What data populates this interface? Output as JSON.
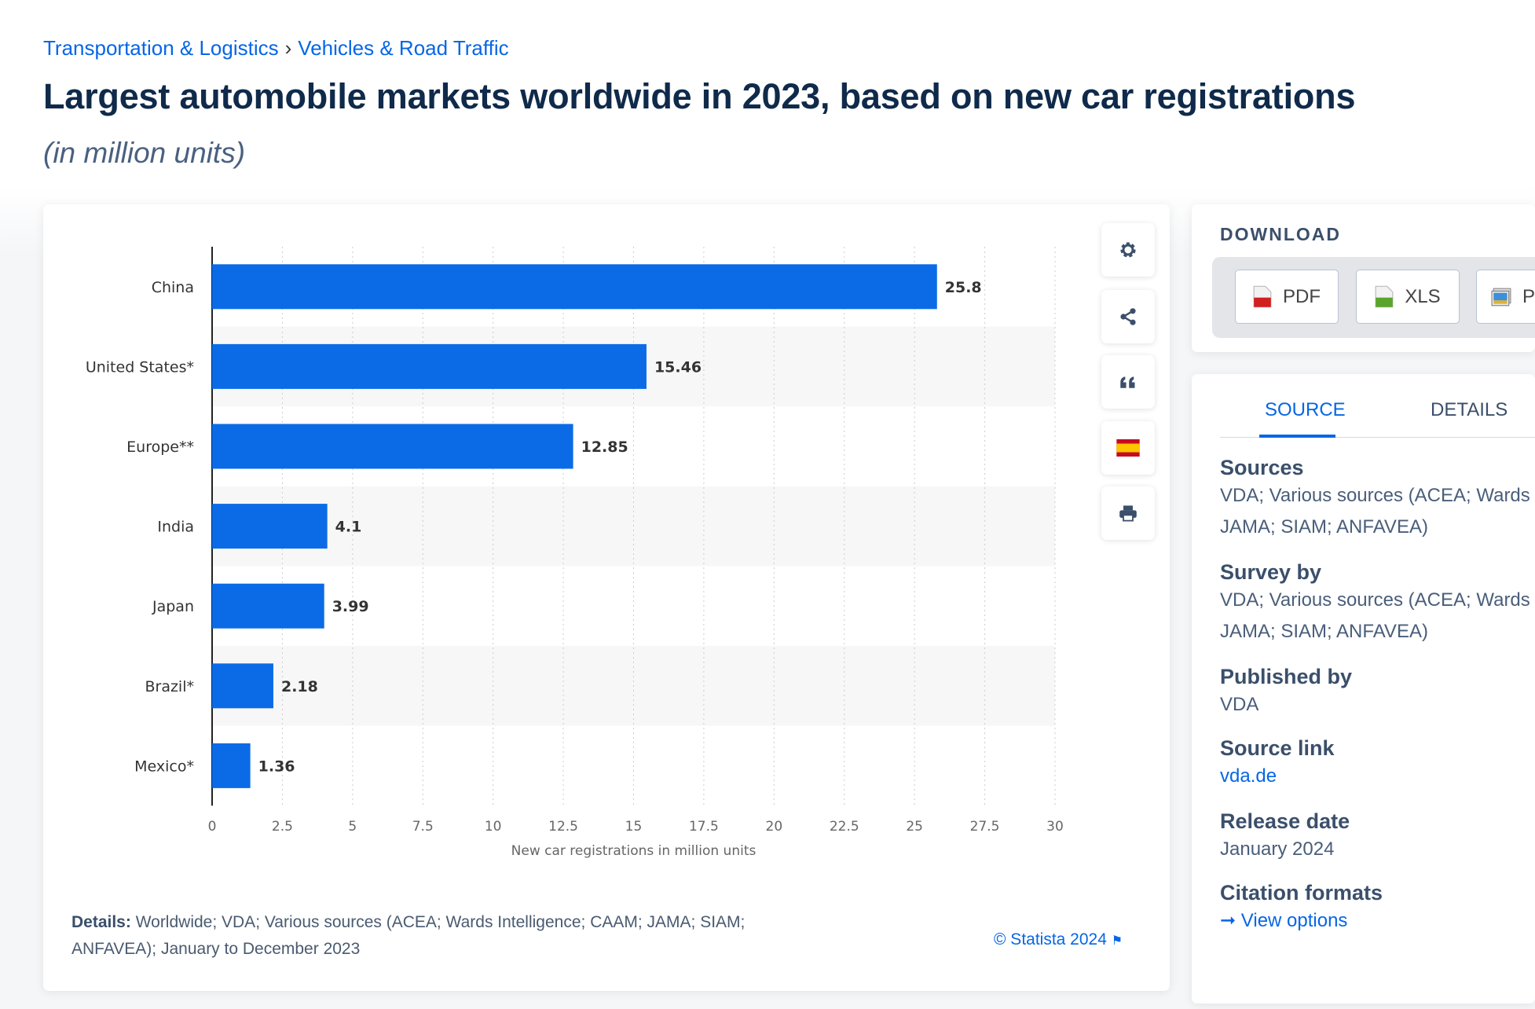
{
  "breadcrumb": [
    "Transportation & Logistics",
    "Vehicles & Road Traffic"
  ],
  "breadcrumb_sep": "›",
  "title": "Largest automobile markets worldwide in 2023, based on new car registrations",
  "subtitle": "(in million units)",
  "chart_data": {
    "type": "bar",
    "orientation": "horizontal",
    "categories": [
      "China",
      "United States*",
      "Europe**",
      "India",
      "Japan",
      "Brazil*",
      "Mexico*"
    ],
    "values": [
      25.8,
      15.46,
      12.85,
      4.1,
      3.99,
      2.18,
      1.36
    ],
    "value_labels": [
      "25.8",
      "15.46",
      "12.85",
      "4.1",
      "3.99",
      "2.18",
      "1.36"
    ],
    "xlabel": "New car registrations in million units",
    "xlim": [
      0,
      30
    ],
    "xticks": [
      "0",
      "2.5",
      "5",
      "7.5",
      "10",
      "12.5",
      "15",
      "17.5",
      "20",
      "22.5",
      "25",
      "27.5",
      "30"
    ],
    "grid": true,
    "bar_color": "#0b6be6"
  },
  "details_label": "Details:",
  "details_text": " Worldwide; VDA; Various sources (ACEA; Wards Intelligence; CAAM; JAMA; SIAM; ANFAVEA); January to December 2023",
  "credit": "© Statista 2024",
  "tools": [
    "settings-icon",
    "share-icon",
    "quote-icon",
    "flag-icon",
    "print-icon"
  ],
  "download": {
    "heading": "DOWNLOAD",
    "buttons": [
      "PDF",
      "XLS",
      "P"
    ]
  },
  "tabs": [
    "SOURCE",
    "DETAILS"
  ],
  "sections": [
    {
      "heading": "Sources",
      "lines": [
        "VDA; Various sources (ACEA; Wards",
        "JAMA; SIAM; ANFAVEA)"
      ]
    },
    {
      "heading": "Survey by",
      "lines": [
        "VDA; Various sources (ACEA; Wards",
        "JAMA; SIAM; ANFAVEA)"
      ]
    },
    {
      "heading": "Published by",
      "lines": [
        "VDA"
      ]
    },
    {
      "heading": "Source link",
      "link": "vda.de"
    },
    {
      "heading": "Release date",
      "lines": [
        "January 2024"
      ]
    },
    {
      "heading": "Citation formats",
      "link": "View options",
      "link_icon": "arrow-right-icon"
    }
  ]
}
